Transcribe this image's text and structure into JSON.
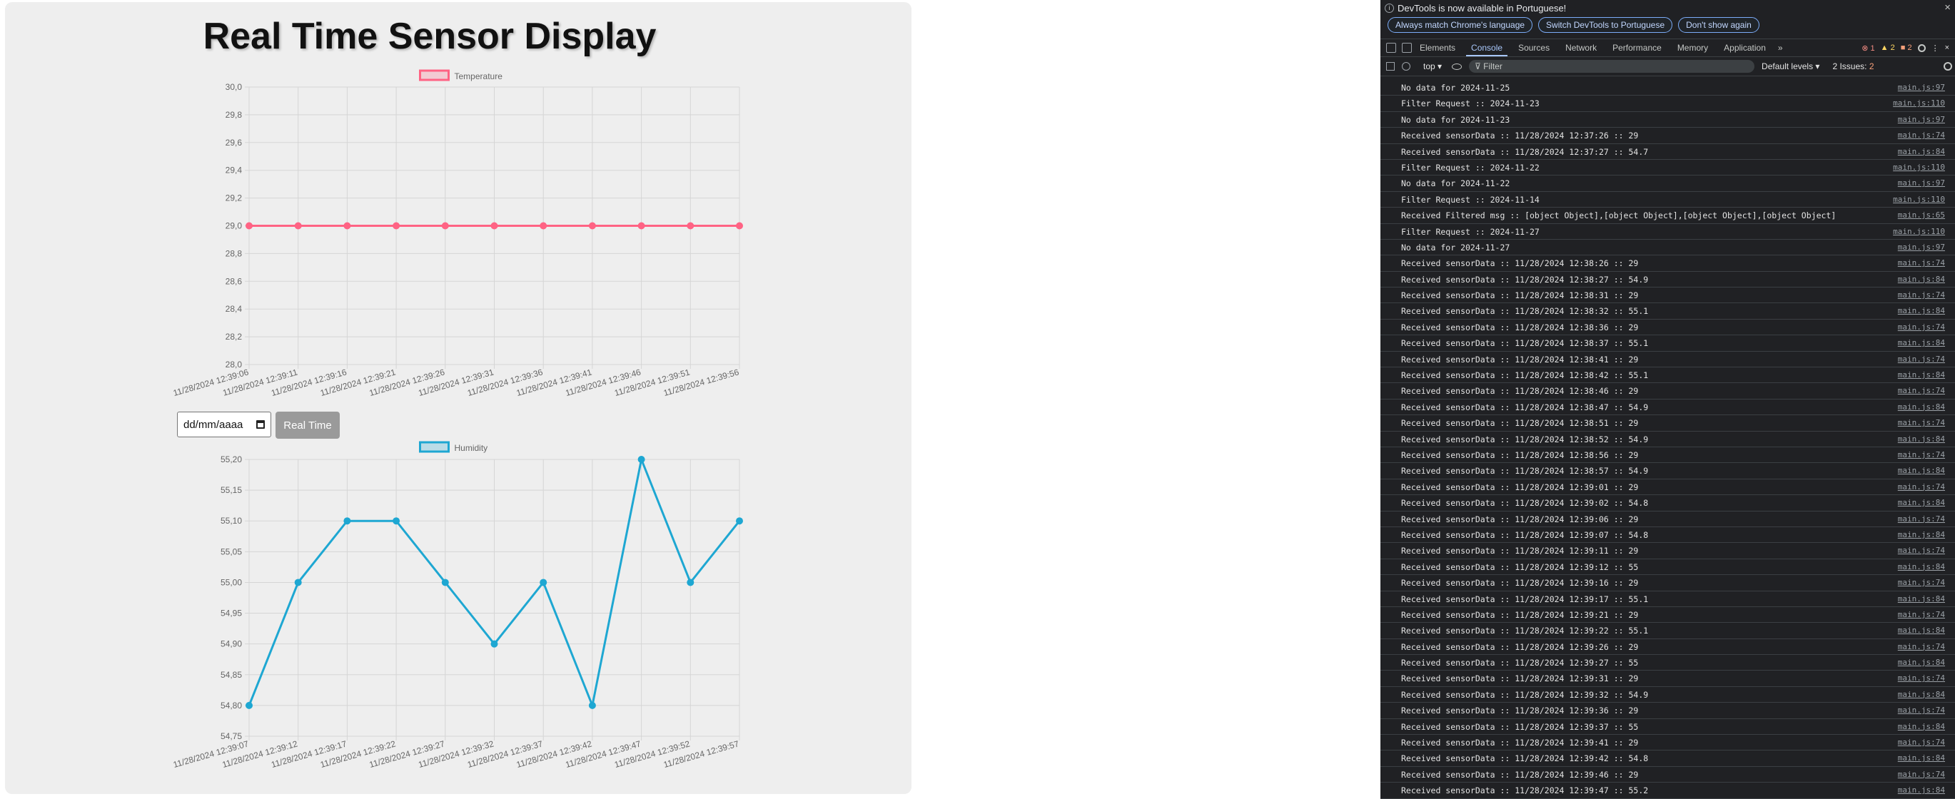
{
  "page": {
    "title": "Real Time Sensor Display",
    "date_placeholder": "dd/mm/aaaa",
    "realtime_button": "Real Time"
  },
  "chart_data": [
    {
      "type": "line",
      "legend": "Temperature",
      "color": "#ff6384",
      "categories": [
        "11/28/2024 12:39:06",
        "11/28/2024 12:39:11",
        "11/28/2024 12:39:16",
        "11/28/2024 12:39:21",
        "11/28/2024 12:39:26",
        "11/28/2024 12:39:31",
        "11/28/2024 12:39:36",
        "11/28/2024 12:39:41",
        "11/28/2024 12:39:46",
        "11/28/2024 12:39:51",
        "11/28/2024 12:39:56"
      ],
      "values": [
        29,
        29,
        29,
        29,
        29,
        29,
        29,
        29,
        29,
        29,
        29
      ],
      "ylim": [
        28.0,
        30.0
      ],
      "yticks": [
        "30,0",
        "29,8",
        "29,6",
        "29,4",
        "29,2",
        "29,0",
        "28,8",
        "28,6",
        "28,4",
        "28,2",
        "28,0"
      ],
      "grid": true
    },
    {
      "type": "line",
      "legend": "Humidity",
      "color": "#1ea7d2",
      "categories": [
        "11/28/2024 12:39:07",
        "11/28/2024 12:39:12",
        "11/28/2024 12:39:17",
        "11/28/2024 12:39:22",
        "11/28/2024 12:39:27",
        "11/28/2024 12:39:32",
        "11/28/2024 12:39:37",
        "11/28/2024 12:39:42",
        "11/28/2024 12:39:47",
        "11/28/2024 12:39:52",
        "11/28/2024 12:39:57"
      ],
      "values": [
        54.8,
        55.0,
        55.1,
        55.1,
        55.0,
        54.9,
        55.0,
        54.8,
        55.2,
        55.0,
        55.1
      ],
      "ylim": [
        54.75,
        55.2
      ],
      "yticks": [
        "55,20",
        "55,15",
        "55,10",
        "55,05",
        "55,00",
        "54,95",
        "54,90",
        "54,85",
        "54,80",
        "54,75"
      ],
      "grid": true
    }
  ],
  "devtools": {
    "notice": "DevTools is now available in Portuguese!",
    "notice_buttons": [
      "Always match Chrome's language",
      "Switch DevTools to Portuguese",
      "Don't show again"
    ],
    "tabs": [
      "Elements",
      "Console",
      "Sources",
      "Network",
      "Performance",
      "Memory",
      "Application"
    ],
    "active_tab": "Console",
    "error_count": "1",
    "warning_count": "2",
    "info_count": "2",
    "context": "top",
    "filter_placeholder": "Filter",
    "levels": "Default levels",
    "issues": "2 Issues:",
    "issues_count": "2",
    "logs": [
      {
        "msg": "No data for 2024-11-25",
        "src": "main.js:97"
      },
      {
        "msg": "Filter Request :: 2024-11-23",
        "src": "main.js:110"
      },
      {
        "msg": "No data for 2024-11-23",
        "src": "main.js:97"
      },
      {
        "msg": "Received sensorData :: 11/28/2024 12:37:26 :: 29",
        "src": "main.js:74"
      },
      {
        "msg": "Received sensorData :: 11/28/2024 12:37:27 :: 54.7",
        "src": "main.js:84"
      },
      {
        "msg": "Filter Request :: 2024-11-22",
        "src": "main.js:110"
      },
      {
        "msg": "No data for 2024-11-22",
        "src": "main.js:97"
      },
      {
        "msg": "Filter Request :: 2024-11-14",
        "src": "main.js:110"
      },
      {
        "msg": "Received Filtered msg :: [object Object],[object Object],[object Object],[object Object]",
        "src": "main.js:65"
      },
      {
        "msg": "Filter Request :: 2024-11-27",
        "src": "main.js:110"
      },
      {
        "msg": "No data for 2024-11-27",
        "src": "main.js:97"
      },
      {
        "msg": "Received sensorData :: 11/28/2024 12:38:26 :: 29",
        "src": "main.js:74"
      },
      {
        "msg": "Received sensorData :: 11/28/2024 12:38:27 :: 54.9",
        "src": "main.js:84"
      },
      {
        "msg": "Received sensorData :: 11/28/2024 12:38:31 :: 29",
        "src": "main.js:74"
      },
      {
        "msg": "Received sensorData :: 11/28/2024 12:38:32 :: 55.1",
        "src": "main.js:84"
      },
      {
        "msg": "Received sensorData :: 11/28/2024 12:38:36 :: 29",
        "src": "main.js:74"
      },
      {
        "msg": "Received sensorData :: 11/28/2024 12:38:37 :: 55.1",
        "src": "main.js:84"
      },
      {
        "msg": "Received sensorData :: 11/28/2024 12:38:41 :: 29",
        "src": "main.js:74"
      },
      {
        "msg": "Received sensorData :: 11/28/2024 12:38:42 :: 55.1",
        "src": "main.js:84"
      },
      {
        "msg": "Received sensorData :: 11/28/2024 12:38:46 :: 29",
        "src": "main.js:74"
      },
      {
        "msg": "Received sensorData :: 11/28/2024 12:38:47 :: 54.9",
        "src": "main.js:84"
      },
      {
        "msg": "Received sensorData :: 11/28/2024 12:38:51 :: 29",
        "src": "main.js:74"
      },
      {
        "msg": "Received sensorData :: 11/28/2024 12:38:52 :: 54.9",
        "src": "main.js:84"
      },
      {
        "msg": "Received sensorData :: 11/28/2024 12:38:56 :: 29",
        "src": "main.js:74"
      },
      {
        "msg": "Received sensorData :: 11/28/2024 12:38:57 :: 54.9",
        "src": "main.js:84"
      },
      {
        "msg": "Received sensorData :: 11/28/2024 12:39:01 :: 29",
        "src": "main.js:74"
      },
      {
        "msg": "Received sensorData :: 11/28/2024 12:39:02 :: 54.8",
        "src": "main.js:84"
      },
      {
        "msg": "Received sensorData :: 11/28/2024 12:39:06 :: 29",
        "src": "main.js:74"
      },
      {
        "msg": "Received sensorData :: 11/28/2024 12:39:07 :: 54.8",
        "src": "main.js:84"
      },
      {
        "msg": "Received sensorData :: 11/28/2024 12:39:11 :: 29",
        "src": "main.js:74"
      },
      {
        "msg": "Received sensorData :: 11/28/2024 12:39:12 :: 55",
        "src": "main.js:84"
      },
      {
        "msg": "Received sensorData :: 11/28/2024 12:39:16 :: 29",
        "src": "main.js:74"
      },
      {
        "msg": "Received sensorData :: 11/28/2024 12:39:17 :: 55.1",
        "src": "main.js:84"
      },
      {
        "msg": "Received sensorData :: 11/28/2024 12:39:21 :: 29",
        "src": "main.js:74"
      },
      {
        "msg": "Received sensorData :: 11/28/2024 12:39:22 :: 55.1",
        "src": "main.js:84"
      },
      {
        "msg": "Received sensorData :: 11/28/2024 12:39:26 :: 29",
        "src": "main.js:74"
      },
      {
        "msg": "Received sensorData :: 11/28/2024 12:39:27 :: 55",
        "src": "main.js:84"
      },
      {
        "msg": "Received sensorData :: 11/28/2024 12:39:31 :: 29",
        "src": "main.js:74"
      },
      {
        "msg": "Received sensorData :: 11/28/2024 12:39:32 :: 54.9",
        "src": "main.js:84"
      },
      {
        "msg": "Received sensorData :: 11/28/2024 12:39:36 :: 29",
        "src": "main.js:74"
      },
      {
        "msg": "Received sensorData :: 11/28/2024 12:39:37 :: 55",
        "src": "main.js:84"
      },
      {
        "msg": "Received sensorData :: 11/28/2024 12:39:41 :: 29",
        "src": "main.js:74"
      },
      {
        "msg": "Received sensorData :: 11/28/2024 12:39:42 :: 54.8",
        "src": "main.js:84"
      },
      {
        "msg": "Received sensorData :: 11/28/2024 12:39:46 :: 29",
        "src": "main.js:74"
      },
      {
        "msg": "Received sensorData :: 11/28/2024 12:39:47 :: 55.2",
        "src": "main.js:84"
      }
    ]
  }
}
